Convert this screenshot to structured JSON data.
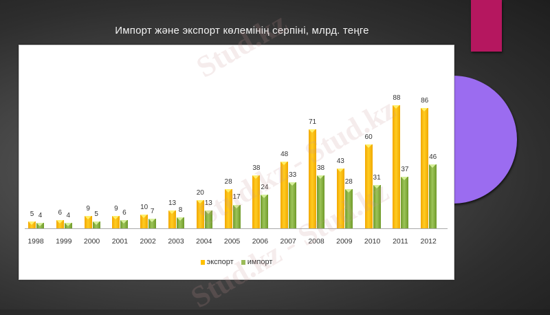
{
  "slide": {
    "title": "Импорт және экспорт көлемінің серпіні, млрд. теңге",
    "accent_colors": {
      "rect": "#b5175f",
      "circle": "#9b6cf0"
    }
  },
  "watermark": "Stud.kz - Stud.kz",
  "chart_data": {
    "type": "bar",
    "title": "Импорт және экспорт көлемінің серпіні, млрд. теңге",
    "xlabel": "",
    "ylabel": "",
    "categories": [
      "1998",
      "1999",
      "2000",
      "2001",
      "2002",
      "2003",
      "2004",
      "2005",
      "2006",
      "2007",
      "2008",
      "2009",
      "2010",
      "2011",
      "2012"
    ],
    "series": [
      {
        "name": "экспорт",
        "color": "#ffc000",
        "values": [
          5,
          6,
          9,
          9,
          10,
          13,
          20,
          28,
          38,
          48,
          71,
          43,
          60,
          88,
          86
        ]
      },
      {
        "name": "импорт",
        "color": "#9bbb59",
        "values": [
          4,
          4,
          5,
          6,
          7,
          8,
          13,
          17,
          24,
          33,
          38,
          28,
          31,
          37,
          46
        ]
      }
    ],
    "ylim": [
      0,
      90
    ],
    "grid": false,
    "legend_position": "bottom",
    "data_labels": true
  },
  "legend": {
    "export_label": "экспорт",
    "import_label": "импорт"
  }
}
